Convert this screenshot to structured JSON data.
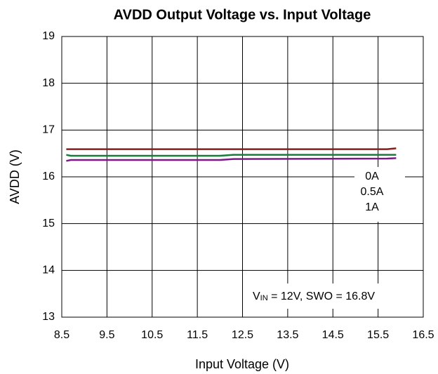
{
  "chart_data": {
    "type": "line",
    "title": "AVDD Output Voltage vs. Input Voltage",
    "xlabel": "Input Voltage (V)",
    "ylabel": "AVDD (V)",
    "x": [
      8.6,
      8.7,
      12.0,
      12.3,
      15.7,
      15.9
    ],
    "series": [
      {
        "name": "0A",
        "color": "#8b1c1c",
        "label_color": "#8b1c1c",
        "values": [
          16.59,
          16.59,
          16.59,
          16.59,
          16.59,
          16.61
        ]
      },
      {
        "name": "0.5A",
        "color": "#1a7a3c",
        "label_color": "#1a7a3c",
        "values": [
          16.47,
          16.45,
          16.45,
          16.47,
          16.47,
          16.47
        ]
      },
      {
        "name": "1A",
        "color": "#7b1a86",
        "label_color": "#e0408f",
        "values": [
          16.34,
          16.36,
          16.36,
          16.38,
          16.39,
          16.4
        ]
      }
    ],
    "xlim": [
      8.5,
      16.5
    ],
    "xticks": [
      8.5,
      9.5,
      10.5,
      11.5,
      12.5,
      13.5,
      14.5,
      15.5,
      16.5
    ],
    "ylim": [
      13,
      19
    ],
    "yticks": [
      13,
      14,
      15,
      16,
      17,
      18,
      19
    ],
    "grid": true,
    "legend": "right",
    "annotation": {
      "text": "V",
      "subscript": "IN",
      "rest": " = 12V, SWO = 16.8V"
    }
  }
}
